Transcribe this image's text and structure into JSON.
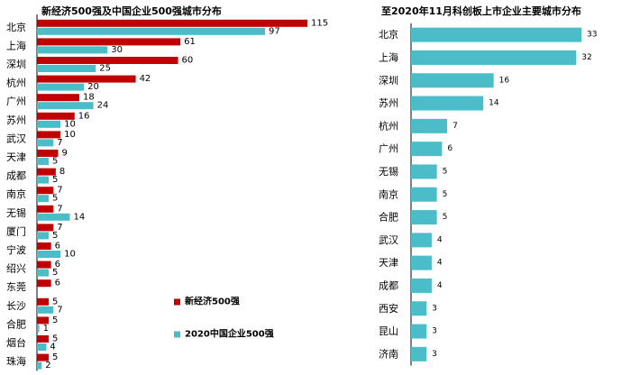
{
  "chart_data": [
    {
      "type": "bar",
      "orientation": "horizontal",
      "title": "新经济500强及中国企业500强城市分布",
      "categories": [
        "北京",
        "上海",
        "深圳",
        "杭州",
        "广州",
        "苏州",
        "武汉",
        "天津",
        "成都",
        "南京",
        "无锡",
        "厦门",
        "宁波",
        "绍兴",
        "东莞",
        "长沙",
        "合肥",
        "烟台",
        "珠海"
      ],
      "series": [
        {
          "name": "新经济500强",
          "color": "#c00000",
          "values": [
            115,
            61,
            60,
            42,
            18,
            16,
            10,
            9,
            8,
            7,
            7,
            7,
            6,
            6,
            6,
            5,
            5,
            5,
            5
          ]
        },
        {
          "name": "2020中国企业500强",
          "color": "#4bbdc9",
          "values": [
            97,
            30,
            25,
            20,
            24,
            10,
            7,
            5,
            5,
            5,
            14,
            5,
            10,
            5,
            null,
            7,
            1,
            4,
            2
          ]
        }
      ],
      "legend": "center-right",
      "xlim": [
        0,
        115
      ]
    },
    {
      "type": "bar",
      "orientation": "horizontal",
      "title": "至2020年11月科创板上市企业主要城市分布",
      "categories": [
        "北京",
        "上海",
        "深圳",
        "苏州",
        "杭州",
        "广州",
        "无锡",
        "南京",
        "合肥",
        "武汉",
        "天津",
        "成都",
        "西安",
        "昆山",
        "济南"
      ],
      "series": [
        {
          "color": "#4bbdc9",
          "values": [
            33,
            32,
            16,
            14,
            7,
            6,
            5,
            5,
            5,
            4,
            4,
            4,
            3,
            3,
            3
          ]
        }
      ],
      "xlim": [
        0,
        33
      ]
    }
  ]
}
